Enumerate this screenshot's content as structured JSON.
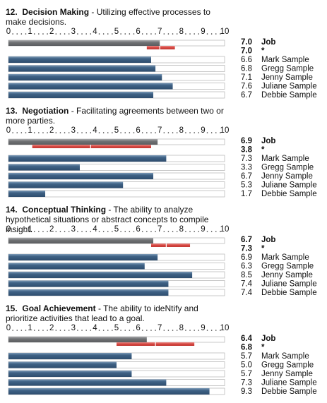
{
  "chart_data": [
    {
      "type": "bar",
      "number": "12.",
      "title": "Decision Making",
      "description": "- Utilizing effective processes to make decisions.",
      "xlim": [
        0,
        10
      ],
      "xticks": [
        0,
        1,
        2,
        3,
        4,
        5,
        6,
        7,
        8,
        9,
        10
      ],
      "categories": [
        "Job",
        "*",
        "Mark Sample",
        "Gregg Sample",
        "Jenny Sample",
        "Juliane Sample",
        "Debbie Sample"
      ],
      "values": [
        7,
        7,
        6.6,
        6.8,
        7.1,
        7.6,
        6.7
      ],
      "value_labels": [
        "7.0",
        "7.0",
        "6.6",
        "6.8",
        "7.1",
        "7.6",
        "6.7"
      ],
      "range": [
        6.4,
        7.7
      ]
    },
    {
      "type": "bar",
      "number": "13.",
      "title": "Negotiation",
      "description": "- Facilitating agreements between two or more parties.",
      "xlim": [
        0,
        10
      ],
      "xticks": [
        0,
        1,
        2,
        3,
        4,
        5,
        6,
        7,
        8,
        9,
        10
      ],
      "categories": [
        "Job",
        "*",
        "Mark Sample",
        "Gregg Sample",
        "Jenny Sample",
        "Juliane Sample",
        "Debbie Sample"
      ],
      "values": [
        6.9,
        3.8,
        7.3,
        3.3,
        6.7,
        5.3,
        1.7
      ],
      "value_labels": [
        "6.9",
        "3.8",
        "7.3",
        "3.3",
        "6.7",
        "5.3",
        "1.7"
      ],
      "range": [
        1.1,
        6.6
      ]
    },
    {
      "type": "bar",
      "number": "14.",
      "title": "Conceptual Thinking",
      "description": "- The ability to analyze hypothetical situations or abstract concepts to compile insight.",
      "xlim": [
        0,
        10
      ],
      "xticks": [
        0,
        1,
        2,
        3,
        4,
        5,
        6,
        7,
        8,
        9,
        10
      ],
      "categories": [
        "Job",
        "*",
        "Mark Sample",
        "Gregg Sample",
        "Jenny Sample",
        "Juliane Sample",
        "Debbie Sample"
      ],
      "values": [
        6.7,
        7.3,
        6.9,
        6.3,
        8.5,
        7.4,
        7.4
      ],
      "value_labels": [
        "6.7",
        "7.3",
        "6.9",
        "6.3",
        "8.5",
        "7.4",
        "7.4"
      ],
      "range": [
        6.6,
        8.4
      ]
    },
    {
      "type": "bar",
      "number": "15.",
      "title": "Goal Achievement",
      "description": "- The ability to ideNtify and prioritize activities that lead to a goal.",
      "xlim": [
        0,
        10
      ],
      "xticks": [
        0,
        1,
        2,
        3,
        4,
        5,
        6,
        7,
        8,
        9,
        10
      ],
      "categories": [
        "Job",
        "*",
        "Mark Sample",
        "Gregg Sample",
        "Jenny Sample",
        "Juliane Sample",
        "Debbie Sample"
      ],
      "values": [
        6.4,
        6.8,
        5.7,
        5.0,
        5.7,
        7.3,
        9.3
      ],
      "value_labels": [
        "6.4",
        "6.8",
        "5.7",
        "5.0",
        "5.7",
        "7.3",
        "9.3"
      ],
      "range": [
        5.0,
        8.6
      ]
    }
  ]
}
